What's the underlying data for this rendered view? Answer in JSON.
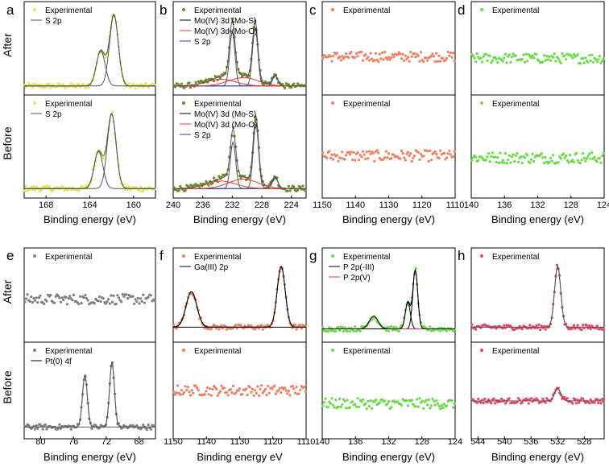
{
  "figure": {
    "row_labels": [
      "After",
      "Before",
      "After",
      "Before"
    ],
    "colors": {
      "yellow": "#e6e65a",
      "olive": "#6b8e23",
      "salmon": "#f08060",
      "green": "#66dd44",
      "gray": "#808080",
      "pink": "#ee4466",
      "black": "#000000",
      "red": "#e8383c",
      "blue": "#2a3ca0",
      "envelope": "#555555"
    }
  },
  "chart_data": [
    {
      "panel": "a",
      "type": "scatter",
      "xlabel": "Binding energy (eV)",
      "xlim": [
        170,
        158
      ],
      "xticks": [
        168,
        164,
        160
      ],
      "after": {
        "legend": [
          "Experimental",
          "S 2p"
        ],
        "peaks": [
          {
            "center": 161.8,
            "height": 0.85,
            "width": 1.0
          },
          {
            "center": 163.0,
            "height": 0.42,
            "width": 1.0
          }
        ],
        "baseline": 0.05
      },
      "before": {
        "legend": [
          "Experimental",
          "S 2p"
        ],
        "peaks": [
          {
            "center": 162.0,
            "height": 0.8,
            "width": 1.0
          },
          {
            "center": 163.2,
            "height": 0.4,
            "width": 1.0
          }
        ],
        "baseline": 0.05
      }
    },
    {
      "panel": "b",
      "type": "scatter",
      "xlabel": "Binding energy (eV)",
      "xlim": [
        240,
        222
      ],
      "xticks": [
        240,
        236,
        232,
        228,
        224
      ],
      "after": {
        "legend": [
          "Experimental",
          "Mo(IV) 3d (Mo-S)",
          "Mo(IV) 3d (Mo-O)",
          "S 2p"
        ],
        "peaks": [
          {
            "center": 228.9,
            "height": 0.7,
            "width": 0.6
          },
          {
            "center": 232.0,
            "height": 0.65,
            "width": 0.6
          },
          {
            "center": 226.2,
            "height": 0.12,
            "width": 0.6
          }
        ],
        "broad": [
          {
            "center": 230.5,
            "height": 0.1,
            "width": 2.0
          },
          {
            "center": 233.5,
            "height": 0.08,
            "width": 2.0
          }
        ],
        "baseline": 0.05
      },
      "before": {
        "legend": [
          "Experimental",
          "Mo(IV) 3d (Mo-S)",
          "Mo(IV) 3d (Mo-O)",
          "S 2p"
        ],
        "peaks": [
          {
            "center": 228.8,
            "height": 0.7,
            "width": 0.6
          },
          {
            "center": 231.9,
            "height": 0.5,
            "width": 0.6
          },
          {
            "center": 226.2,
            "height": 0.12,
            "width": 0.6
          }
        ],
        "broad": [
          {
            "center": 230.5,
            "height": 0.1,
            "width": 2.0
          },
          {
            "center": 233.5,
            "height": 0.08,
            "width": 2.0
          }
        ],
        "baseline": 0.05
      }
    },
    {
      "panel": "c",
      "type": "scatter",
      "xlabel": "Binding energy (eV)",
      "xlim": [
        1150,
        1110
      ],
      "xticks": [
        1150,
        1140,
        1130,
        1120,
        1110
      ],
      "after": {
        "legend": [
          "Experimental"
        ],
        "level": 0.4
      },
      "before": {
        "legend": [
          "Experimental"
        ],
        "level": 0.4
      }
    },
    {
      "panel": "d",
      "type": "scatter",
      "xlabel": "Binding energy (eV)",
      "xlim": [
        140,
        124
      ],
      "xticks": [
        140,
        136,
        132,
        128,
        124
      ],
      "after": {
        "legend": [
          "Experimental"
        ],
        "level": 0.38
      },
      "before": {
        "legend": [
          "Experimental"
        ],
        "level": 0.38
      }
    },
    {
      "panel": "e",
      "type": "scatter",
      "xlabel": "Binding energy (eV)",
      "xlim": [
        82,
        66
      ],
      "xticks": [
        80,
        76,
        72,
        68
      ],
      "after": {
        "legend": [
          "Experimental"
        ],
        "level": 0.45
      },
      "before": {
        "legend": [
          "Experimental",
          "Pt(0) 4f"
        ],
        "peaks": [
          {
            "center": 71.3,
            "height": 0.75,
            "width": 0.55
          },
          {
            "center": 74.6,
            "height": 0.6,
            "width": 0.55
          }
        ],
        "baseline": 0.08
      }
    },
    {
      "panel": "f",
      "type": "scatter",
      "xlabel": "Binding energy eV",
      "xlim": [
        1150,
        1110
      ],
      "xticks": [
        1150,
        1140,
        1130,
        1120,
        1110
      ],
      "after": {
        "legend": [
          "Experimental",
          "Ga(III) 2p"
        ],
        "peaks": [
          {
            "center": 1117.5,
            "height": 0.72,
            "width": 0.9
          },
          {
            "center": 1144.5,
            "height": 0.42,
            "width": 1.2
          }
        ],
        "baseline": 0.12
      },
      "before": {
        "legend": [
          "Experimental"
        ],
        "level": 0.5
      }
    },
    {
      "panel": "g",
      "type": "scatter",
      "xlabel": "Binding energy (eV)",
      "xlim": [
        140,
        124
      ],
      "xticks": [
        140,
        136,
        132,
        128,
        124
      ],
      "after": {
        "legend": [
          "Experimental",
          "P 2p(-III)",
          "P 2p(V)"
        ],
        "peaks": [
          {
            "center": 128.8,
            "height": 0.7,
            "width": 0.55
          },
          {
            "center": 129.7,
            "height": 0.32,
            "width": 0.55
          },
          {
            "center": 133.8,
            "height": 0.15,
            "width": 1.0
          }
        ],
        "baseline": 0.1
      },
      "before": {
        "legend": [
          "Experimental"
        ],
        "level": 0.35
      }
    },
    {
      "panel": "h",
      "type": "scatter",
      "xlabel": "Binding energy (eV)",
      "xlim": [
        545,
        525
      ],
      "xticks": [
        544,
        540,
        536,
        532,
        528
      ],
      "after": {
        "legend": [
          "Experimental"
        ],
        "peaks": [
          {
            "center": 532.0,
            "height": 0.72,
            "width": 0.7
          }
        ],
        "baseline": 0.12
      },
      "before": {
        "legend": [
          "Experimental"
        ],
        "peaks": [
          {
            "center": 532.0,
            "height": 0.14,
            "width": 0.7
          }
        ],
        "baseline": 0.38
      }
    }
  ]
}
